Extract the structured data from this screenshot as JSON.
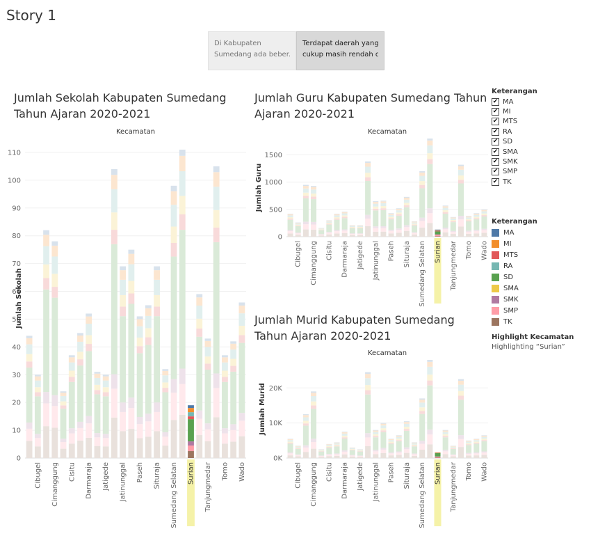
{
  "story": {
    "title": "Story 1",
    "points": [
      {
        "line1": "Di Kabupaten",
        "line2": "Sumedang ada beber..",
        "active": false
      },
      {
        "line1": "Terdapat daerah yang",
        "line2": "cukup masih rendah d..",
        "active": true
      }
    ]
  },
  "legend_filter": {
    "title": "Keterangan",
    "items": [
      "MA",
      "MI",
      "MTS",
      "RA",
      "SD",
      "SMA",
      "SMK",
      "SMP",
      "TK"
    ]
  },
  "legend_color": {
    "title": "Keterangan",
    "items": [
      {
        "label": "MA",
        "color": "#4e79a7"
      },
      {
        "label": "MI",
        "color": "#f28e2b"
      },
      {
        "label": "MTS",
        "color": "#e15759"
      },
      {
        "label": "RA",
        "color": "#76b7b2"
      },
      {
        "label": "SD",
        "color": "#59a14f"
      },
      {
        "label": "SMA",
        "color": "#edc948"
      },
      {
        "label": "SMK",
        "color": "#b07aa1"
      },
      {
        "label": "SMP",
        "color": "#ff9da7"
      },
      {
        "label": "TK",
        "color": "#9c755f"
      }
    ]
  },
  "highlight": {
    "title": "Highlight Kecamatan",
    "value": "Highlighting “Surian”",
    "selected": "Surian"
  },
  "chart_data": [
    {
      "type": "bar",
      "stacked": true,
      "title_line1": "Jumlah Sekolah Kabupaten Sumedang",
      "title_line2": "Tahun Ajaran 2020-2021",
      "xlabel": "Kecamatan",
      "ylabel": "Jumlah Sekolah",
      "ylim": [
        0,
        115
      ],
      "yticks": [
        0,
        10,
        20,
        30,
        40,
        50,
        60,
        70,
        80,
        90,
        100,
        110
      ],
      "ytick_labels": [
        "0",
        "10",
        "20",
        "30",
        "40",
        "50",
        "60",
        "70",
        "80",
        "90",
        "100",
        "110"
      ],
      "category_labels": [
        "Cibugel",
        "Cimanggung",
        "Cisitu",
        "Darmaraja",
        "Jatigede",
        "Jatinunggal",
        "Paseh",
        "Situraja",
        "Sumedang Selatan",
        "Surian",
        "Tanjungmedar",
        "Tomo",
        "Wado"
      ],
      "highlighted": "Surian",
      "totals": [
        44,
        30,
        82,
        78,
        24,
        37,
        45,
        52,
        31,
        30,
        104,
        69,
        75,
        51,
        55,
        69,
        32,
        98,
        111,
        19,
        59,
        43,
        105,
        37,
        42,
        56
      ],
      "surian_breakdown": {
        "TK": 2.5,
        "SMP": 2,
        "SMK": 1.5,
        "SD": 8,
        "MTS": 1,
        "RA": 1.5,
        "MI": 1.5,
        "MA": 1
      }
    },
    {
      "type": "bar",
      "stacked": true,
      "title_line1": "Jumlah Guru Kabupaten Sumedang Tahun",
      "title_line2": "Ajaran 2020-2021",
      "xlabel": "Kecamatan",
      "ylabel": "Jumlah Guru",
      "ylim": [
        0,
        1800
      ],
      "yticks": [
        0,
        500,
        1000,
        1500
      ],
      "ytick_labels": [
        "0",
        "500",
        "1000",
        "1500"
      ],
      "category_labels": [
        "Cibugel",
        "Cimanggung",
        "Cisitu",
        "Darmaraja",
        "Jatigede",
        "Jatinunggal",
        "Paseh",
        "Situraja",
        "Sumedang Selatan",
        "Surian",
        "Tanjungmedar",
        "Tomo",
        "Wado"
      ],
      "highlighted": "Surian",
      "totals": [
        420,
        260,
        950,
        930,
        160,
        300,
        420,
        460,
        210,
        210,
        1380,
        650,
        660,
        430,
        520,
        730,
        280,
        1200,
        1800,
        130,
        570,
        360,
        1320,
        380,
        430,
        500
      ],
      "surian_breakdown": {
        "TK": 10,
        "SMP": 22,
        "SMK": 10,
        "SD": 55,
        "MTS": 12,
        "RA": 8,
        "MI": 8,
        "MA": 5
      }
    },
    {
      "type": "bar",
      "stacked": true,
      "title_line1": "Jumlah Murid Kabupaten Sumedang",
      "title_line2": "Tahun Ajaran 2020-2021",
      "xlabel": "Kecamatan",
      "ylabel": "Jumlah Murid",
      "ylim": [
        0,
        28000
      ],
      "yticks": [
        0,
        10000,
        20000
      ],
      "ytick_labels": [
        "0K",
        "10K",
        "20K"
      ],
      "category_labels": [
        "Cibugel",
        "Cimanggung",
        "Cisitu",
        "Darmaraja",
        "Jatigede",
        "Jatinunggal",
        "Paseh",
        "Situraja",
        "Sumedang Selatan",
        "Surian",
        "Tanjungmedar",
        "Tomo",
        "Wado"
      ],
      "highlighted": "Surian",
      "totals": [
        5500,
        3500,
        12500,
        19000,
        2500,
        4000,
        4500,
        7500,
        3000,
        2500,
        24500,
        8000,
        10000,
        5500,
        6500,
        10500,
        4500,
        17000,
        28000,
        1600,
        8000,
        3500,
        22500,
        5000,
        5500,
        6500
      ],
      "surian_breakdown": {
        "TK": 100,
        "SMP": 250,
        "SMK": 100,
        "SD": 950,
        "MTS": 100,
        "RA": 50,
        "MI": 50,
        "MA": 0
      }
    }
  ]
}
